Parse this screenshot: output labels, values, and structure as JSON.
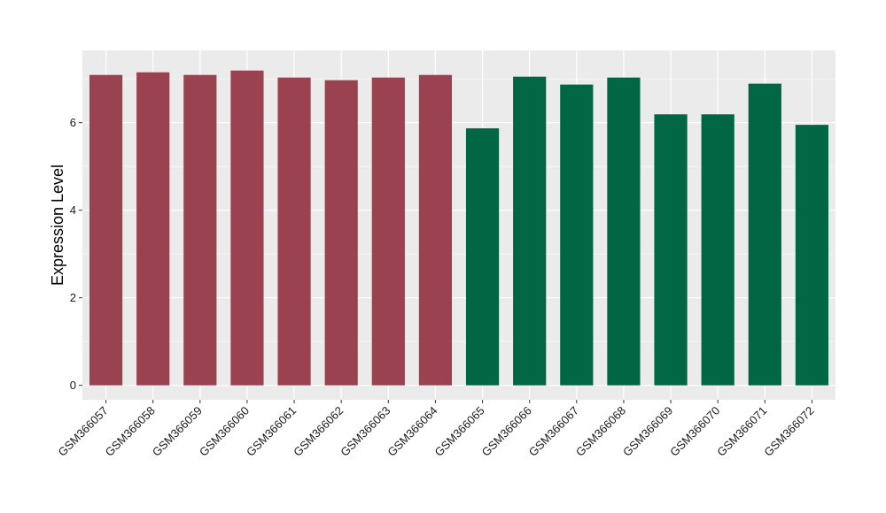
{
  "chart_data": {
    "type": "bar",
    "title": "",
    "xlabel": "",
    "ylabel": "Expression Level",
    "ylim": [
      -0.33,
      7.65
    ],
    "yticks": [
      0,
      2,
      4,
      6
    ],
    "grid": true,
    "legend": "none",
    "categories": [
      "GSM366057",
      "GSM366058",
      "GSM366059",
      "GSM366060",
      "GSM366061",
      "GSM366062",
      "GSM366063",
      "GSM366064",
      "GSM366065",
      "GSM366066",
      "GSM366067",
      "GSM366068",
      "GSM366069",
      "GSM366070",
      "GSM366071",
      "GSM366072"
    ],
    "values": [
      7.09,
      7.15,
      7.09,
      7.19,
      7.03,
      6.97,
      7.03,
      7.09,
      5.87,
      7.05,
      6.87,
      7.03,
      6.19,
      6.19,
      6.89,
      5.95
    ],
    "groups": [
      0,
      0,
      0,
      0,
      0,
      0,
      0,
      0,
      1,
      1,
      1,
      1,
      1,
      1,
      1,
      1
    ],
    "colors": {
      "group_colors": [
        "#9b4250",
        "#006644"
      ],
      "panel_background": "#ebebeb",
      "grid_major": "#ffffff",
      "grid_minor": "#f5f5f5"
    }
  }
}
